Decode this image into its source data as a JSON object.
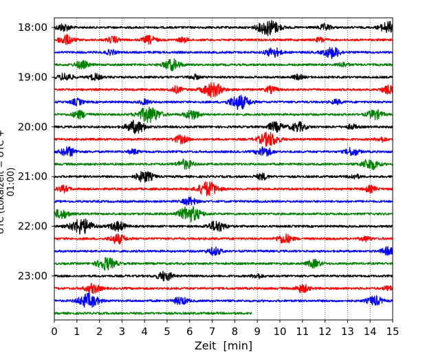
{
  "chart_data": {
    "type": "line",
    "xlabel": "Zeit  [min]",
    "ylabel": "UTC (Lokalzeit = UTC + 01:00)",
    "xlim": [
      0,
      15
    ],
    "x_ticks": [
      "0",
      "1",
      "2",
      "3",
      "4",
      "5",
      "6",
      "7",
      "8",
      "9",
      "10",
      "11",
      "12",
      "13",
      "14",
      "15"
    ],
    "y_ticks": [
      "18:00",
      "19:00",
      "20:00",
      "21:00",
      "22:00",
      "23:00"
    ],
    "y_tick_rows": [
      0,
      4,
      8,
      12,
      16,
      20
    ],
    "grid": "vertical-dotted",
    "rows": [
      {
        "start": "18:00",
        "color": "#000000",
        "end_min": 15,
        "events": [
          [
            0.4,
            0.5
          ],
          [
            9.5,
            1.0
          ],
          [
            12.0,
            0.4
          ],
          [
            14.8,
            0.7
          ]
        ]
      },
      {
        "start": "18:15",
        "color": "#ff0000",
        "end_min": 15,
        "events": [
          [
            0.5,
            0.6
          ],
          [
            2.6,
            0.4
          ],
          [
            4.2,
            0.5
          ],
          [
            5.7,
            0.3
          ],
          [
            11.8,
            0.3
          ]
        ]
      },
      {
        "start": "18:30",
        "color": "#0000ff",
        "end_min": 15,
        "events": [
          [
            2.5,
            0.3
          ],
          [
            9.7,
            0.6
          ],
          [
            12.3,
            0.7
          ]
        ]
      },
      {
        "start": "18:45",
        "color": "#008000",
        "end_min": 15,
        "events": [
          [
            1.2,
            0.5
          ],
          [
            5.2,
            0.7
          ],
          [
            12.8,
            0.3
          ]
        ]
      },
      {
        "start": "19:00",
        "color": "#000000",
        "end_min": 15,
        "events": [
          [
            0.5,
            0.5
          ],
          [
            1.8,
            0.4
          ],
          [
            6.2,
            0.3
          ],
          [
            10.8,
            0.3
          ]
        ]
      },
      {
        "start": "19:15",
        "color": "#ff0000",
        "end_min": 15,
        "events": [
          [
            5.4,
            0.4
          ],
          [
            7.0,
            0.9
          ],
          [
            9.6,
            0.4
          ],
          [
            14.8,
            0.5
          ]
        ]
      },
      {
        "start": "19:30",
        "color": "#0000ff",
        "end_min": 15,
        "events": [
          [
            1.0,
            0.4
          ],
          [
            4.0,
            0.3
          ],
          [
            8.2,
            0.9
          ],
          [
            12.5,
            0.3
          ]
        ]
      },
      {
        "start": "19:45",
        "color": "#008000",
        "end_min": 15,
        "events": [
          [
            1.1,
            0.5
          ],
          [
            4.2,
            1.0
          ],
          [
            6.1,
            0.6
          ],
          [
            14.2,
            0.6
          ]
        ]
      },
      {
        "start": "20:00",
        "color": "#000000",
        "end_min": 15,
        "events": [
          [
            3.6,
            0.8
          ],
          [
            9.8,
            0.6
          ],
          [
            10.8,
            0.6
          ],
          [
            13.2,
            0.3
          ]
        ]
      },
      {
        "start": "20:15",
        "color": "#ff0000",
        "end_min": 15,
        "events": [
          [
            5.6,
            0.5
          ],
          [
            9.5,
            0.9
          ],
          [
            14.5,
            0.3
          ]
        ]
      },
      {
        "start": "20:30",
        "color": "#0000ff",
        "end_min": 15,
        "events": [
          [
            0.6,
            0.6
          ],
          [
            3.5,
            0.3
          ],
          [
            9.3,
            0.6
          ],
          [
            13.2,
            0.5
          ]
        ]
      },
      {
        "start": "20:45",
        "color": "#008000",
        "end_min": 15,
        "events": [
          [
            5.8,
            0.6
          ],
          [
            14.0,
            0.7
          ]
        ]
      },
      {
        "start": "21:00",
        "color": "#000000",
        "end_min": 15,
        "events": [
          [
            4.0,
            0.7
          ],
          [
            9.2,
            0.4
          ],
          [
            13.3,
            0.3
          ]
        ]
      },
      {
        "start": "21:15",
        "color": "#ff0000",
        "end_min": 15,
        "events": [
          [
            0.4,
            0.4
          ],
          [
            6.8,
            0.9
          ],
          [
            14.0,
            0.4
          ]
        ]
      },
      {
        "start": "21:30",
        "color": "#0000ff",
        "end_min": 15,
        "events": [
          [
            6.0,
            0.5
          ]
        ]
      },
      {
        "start": "21:45",
        "color": "#008000",
        "end_min": 15,
        "events": [
          [
            0.3,
            0.6
          ],
          [
            6.0,
            1.0
          ]
        ]
      },
      {
        "start": "22:00",
        "color": "#000000",
        "end_min": 15,
        "events": [
          [
            1.2,
            1.0
          ],
          [
            2.8,
            0.6
          ],
          [
            7.2,
            0.7
          ]
        ]
      },
      {
        "start": "22:15",
        "color": "#ff0000",
        "end_min": 15,
        "events": [
          [
            2.8,
            0.6
          ],
          [
            10.2,
            0.6
          ],
          [
            13.8,
            0.3
          ]
        ]
      },
      {
        "start": "22:30",
        "color": "#0000ff",
        "end_min": 15,
        "events": [
          [
            7.1,
            0.5
          ],
          [
            14.8,
            0.5
          ]
        ]
      },
      {
        "start": "22:45",
        "color": "#008000",
        "end_min": 15,
        "events": [
          [
            2.3,
            0.8
          ],
          [
            11.5,
            0.5
          ]
        ]
      },
      {
        "start": "23:00",
        "color": "#000000",
        "end_min": 15,
        "events": [
          [
            4.9,
            0.6
          ],
          [
            9.0,
            0.3
          ]
        ]
      },
      {
        "start": "23:15",
        "color": "#ff0000",
        "end_min": 15,
        "events": [
          [
            1.7,
            0.6
          ],
          [
            11.0,
            0.5
          ],
          [
            14.8,
            0.3
          ]
        ]
      },
      {
        "start": "23:30",
        "color": "#0000ff",
        "end_min": 15,
        "events": [
          [
            1.5,
            0.9
          ],
          [
            5.6,
            0.5
          ],
          [
            14.2,
            0.6
          ]
        ]
      },
      {
        "start": "23:45",
        "color": "#008000",
        "end_min": 8.75,
        "events": []
      }
    ]
  }
}
